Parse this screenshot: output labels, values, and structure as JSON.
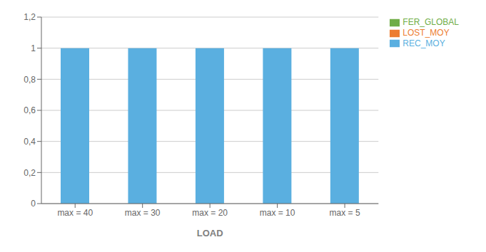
{
  "chart_data": {
    "type": "bar",
    "x_label": "LOAD",
    "categories": [
      "max = 40",
      "max = 30",
      "max = 20",
      "max = 10",
      "max = 5"
    ],
    "series": [
      {
        "name": "REC_MOY",
        "color": "#5aafe0",
        "values": [
          1.0,
          1.0,
          1.0,
          1.0,
          1.0
        ]
      },
      {
        "name": "LOST_MOY",
        "color": "#ed7d31",
        "values": [
          0.0,
          0.0,
          0.0,
          0.0,
          0.0
        ]
      },
      {
        "name": "FER_GLOBAL",
        "color": "#70ad47",
        "values": [
          0.0,
          0.0,
          0.0,
          0.0,
          0.0
        ]
      }
    ],
    "ylim": [
      0,
      1.2
    ],
    "yticks": [
      0,
      {
        "value": 0.2,
        "label": "0,2"
      },
      {
        "value": 0.4,
        "label": "0,4"
      },
      {
        "value": 0.6,
        "label": "0,6"
      },
      {
        "value": 0.8,
        "label": "0,8"
      },
      1,
      {
        "value": 1.2,
        "label": "1,2"
      }
    ],
    "grid": true,
    "legend": "right"
  }
}
